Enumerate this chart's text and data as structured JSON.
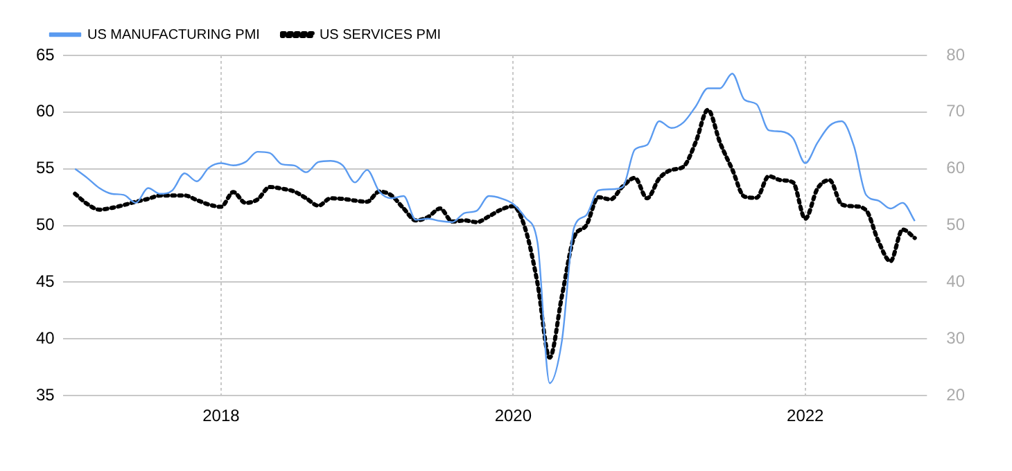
{
  "chart_data": {
    "type": "line",
    "x": [
      "2017-01",
      "2017-02",
      "2017-03",
      "2017-04",
      "2017-05",
      "2017-06",
      "2017-07",
      "2017-08",
      "2017-09",
      "2017-10",
      "2017-11",
      "2017-12",
      "2018-01",
      "2018-02",
      "2018-03",
      "2018-04",
      "2018-05",
      "2018-06",
      "2018-07",
      "2018-08",
      "2018-09",
      "2018-10",
      "2018-11",
      "2018-12",
      "2019-01",
      "2019-02",
      "2019-03",
      "2019-04",
      "2019-05",
      "2019-06",
      "2019-07",
      "2019-08",
      "2019-09",
      "2019-10",
      "2019-11",
      "2019-12",
      "2020-01",
      "2020-02",
      "2020-03",
      "2020-04",
      "2020-05",
      "2020-06",
      "2020-07",
      "2020-08",
      "2020-09",
      "2020-10",
      "2020-11",
      "2020-12",
      "2021-01",
      "2021-02",
      "2021-03",
      "2021-04",
      "2021-05",
      "2021-06",
      "2021-07",
      "2021-08",
      "2021-09",
      "2021-10",
      "2021-11",
      "2021-12",
      "2022-01",
      "2022-02",
      "2022-03",
      "2022-04",
      "2022-05",
      "2022-06",
      "2022-07",
      "2022-08",
      "2022-09",
      "2022-10"
    ],
    "series": [
      {
        "name": "US MANUFACTURING PMI",
        "color": "#5b9bf0",
        "line_style": "solid",
        "values": [
          55.0,
          54.2,
          53.3,
          52.8,
          52.7,
          52.0,
          53.3,
          52.8,
          53.1,
          54.6,
          53.9,
          55.1,
          55.5,
          55.3,
          55.6,
          56.5,
          56.4,
          55.4,
          55.3,
          54.7,
          55.6,
          55.7,
          55.3,
          53.8,
          54.9,
          53.0,
          52.4,
          52.6,
          50.5,
          50.6,
          50.4,
          50.3,
          51.1,
          51.3,
          52.6,
          52.4,
          51.9,
          50.7,
          48.5,
          36.1,
          39.8,
          49.8,
          50.9,
          53.1,
          53.2,
          53.4,
          56.7,
          57.1,
          59.2,
          58.6,
          59.1,
          60.5,
          62.1,
          62.1,
          63.4,
          61.1,
          60.7,
          58.4,
          58.3,
          57.7,
          55.5,
          57.3,
          58.8,
          59.2,
          57.0,
          52.7,
          52.2,
          51.5,
          52.0,
          50.4
        ]
      },
      {
        "name": "US SERVICES PMI",
        "color": "#000000",
        "line_style": "dotted",
        "axis": "y2",
        "values": [
          55.6,
          53.8,
          52.8,
          53.1,
          53.6,
          54.2,
          54.7,
          55.3,
          55.3,
          55.3,
          54.5,
          53.7,
          53.3,
          55.9,
          54.0,
          54.6,
          56.8,
          56.5,
          56.0,
          54.8,
          53.5,
          54.8,
          54.7,
          54.4,
          54.2,
          56.0,
          55.3,
          53.0,
          50.9,
          51.5,
          53.0,
          50.7,
          50.9,
          50.6,
          51.6,
          52.8,
          53.4,
          49.4,
          39.8,
          26.7,
          37.5,
          47.9,
          50.0,
          55.0,
          54.6,
          56.9,
          58.4,
          54.8,
          58.3,
          59.8,
          60.4,
          64.7,
          70.4,
          64.6,
          59.9,
          55.1,
          54.9,
          58.7,
          58.0,
          57.6,
          51.2,
          56.5,
          58.0,
          53.7,
          53.4,
          52.7,
          47.3,
          43.7,
          49.3,
          47.8
        ]
      }
    ],
    "xlim": [
      "2016-12",
      "2022-11"
    ],
    "xticks": [
      "2018",
      "2020",
      "2022"
    ],
    "ylim": [
      35,
      65
    ],
    "yticks": [
      35,
      40,
      45,
      50,
      55,
      60,
      65
    ],
    "y2lim": [
      20,
      80
    ],
    "y2ticks": [
      20,
      30,
      40,
      50,
      60,
      70,
      80
    ],
    "grid": true,
    "legend": "top left",
    "marker": "none"
  }
}
